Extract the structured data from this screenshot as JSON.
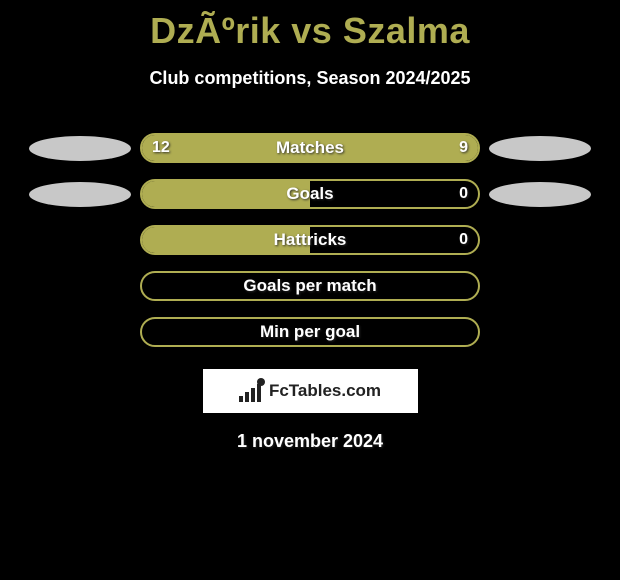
{
  "header": {
    "title": "DzÃºrik vs Szalma",
    "subtitle": "Club competitions, Season 2024/2025"
  },
  "colors": {
    "accent": "#afad52",
    "background": "#000000",
    "ellipse": "#c8c8c8",
    "white": "#ffffff"
  },
  "rows": [
    {
      "label": "Matches",
      "left_val": "12",
      "right_val": "9",
      "left_pct": 100,
      "right_pct": 100,
      "show_left_ellipse": true,
      "show_right_ellipse": true
    },
    {
      "label": "Goals",
      "left_val": "",
      "right_val": "0",
      "left_pct": 100,
      "right_pct": 0,
      "show_left_ellipse": true,
      "show_right_ellipse": true
    },
    {
      "label": "Hattricks",
      "left_val": "",
      "right_val": "0",
      "left_pct": 100,
      "right_pct": 0,
      "show_left_ellipse": false,
      "show_right_ellipse": false
    },
    {
      "label": "Goals per match",
      "left_val": "",
      "right_val": "",
      "left_pct": 0,
      "right_pct": 0,
      "show_left_ellipse": false,
      "show_right_ellipse": false
    },
    {
      "label": "Min per goal",
      "left_val": "",
      "right_val": "",
      "left_pct": 0,
      "right_pct": 0,
      "show_left_ellipse": false,
      "show_right_ellipse": false
    }
  ],
  "footer": {
    "logo_text": "FcTables.com",
    "date": "1 november 2024"
  }
}
